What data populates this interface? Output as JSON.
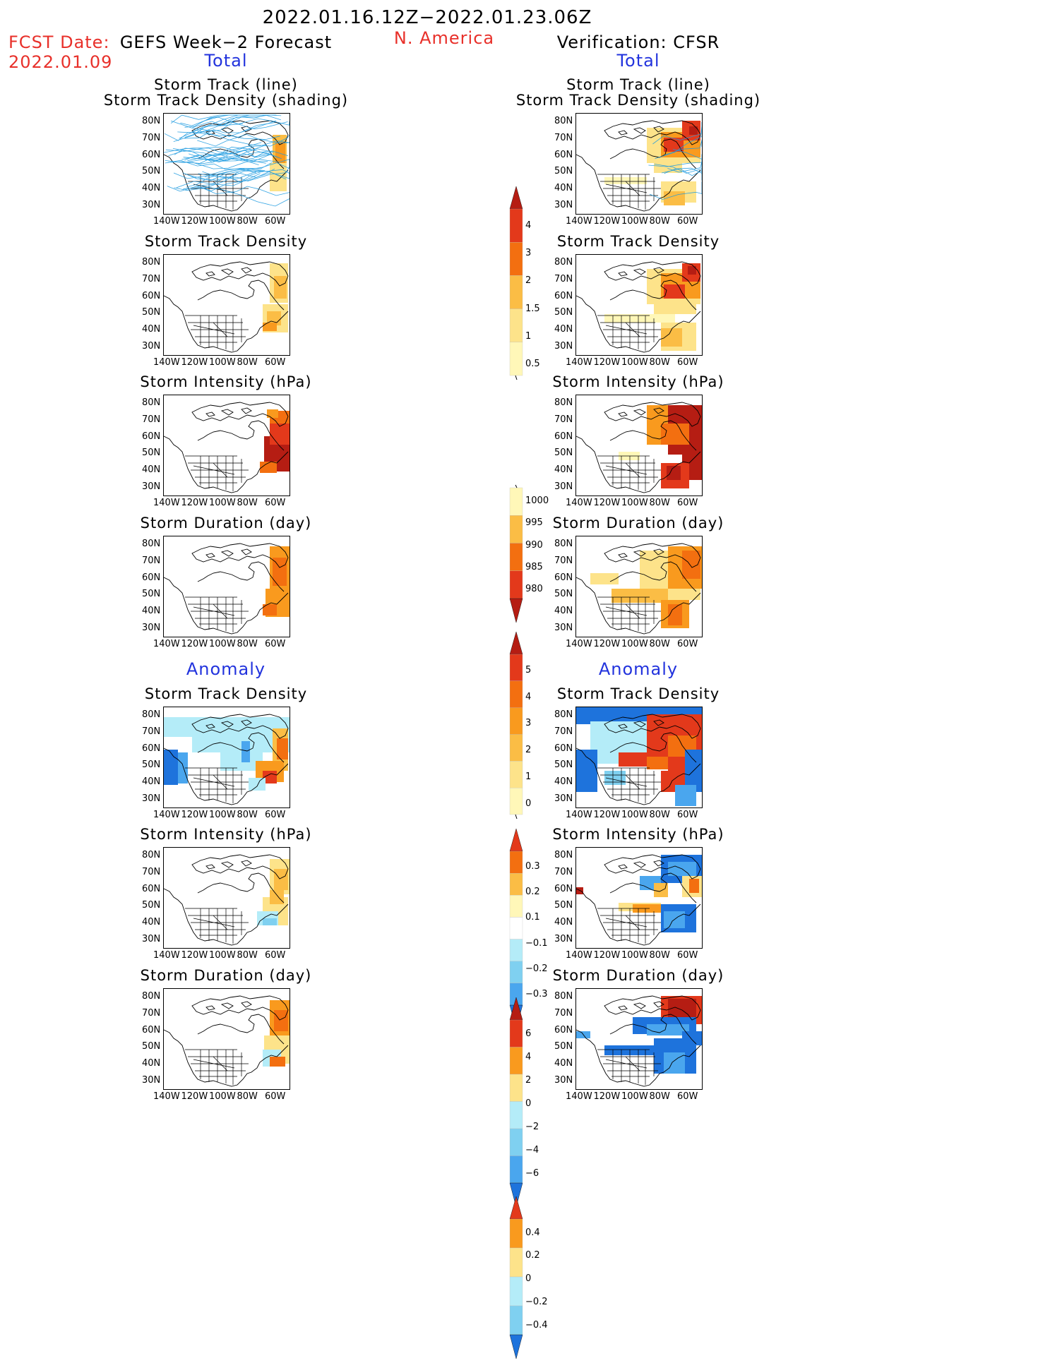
{
  "header": {
    "date_range": "2022.01.16.12Z−2022.01.23.06Z",
    "region": "N. America",
    "fcst_label": "FCST Date:",
    "fcst_date": "2022.01.09",
    "left_title": "GEFS Week−2 Forecast",
    "right_title": "Verification: CFSR"
  },
  "sections": {
    "total": "Total",
    "anomaly": "Anomaly"
  },
  "panel_titles": {
    "track_line": "Storm Track (line)",
    "track_shading": "Storm Track Density (shading)",
    "density": "Storm Track Density",
    "intensity": "Storm Intensity (hPa)",
    "duration": "Storm Duration (day)"
  },
  "axes": {
    "lat_labels": [
      "80N",
      "70N",
      "60N",
      "50N",
      "40N",
      "30N"
    ],
    "lon_labels": [
      "140W",
      "120W",
      "100W",
      "80W",
      "60W"
    ]
  },
  "colorbars": {
    "density_total": [
      "4",
      "3",
      "2",
      "1.5",
      "1",
      "0.5"
    ],
    "intensity_total": [
      "1000",
      "995",
      "990",
      "985",
      "980"
    ],
    "duration_total": [
      "5",
      "4",
      "3",
      "2",
      "1",
      "0"
    ],
    "density_anom": [
      "0.3",
      "0.2",
      "0.1",
      "−0.1",
      "−0.2",
      "−0.3"
    ],
    "intensity_anom": [
      "6",
      "4",
      "2",
      "0",
      "−2",
      "−4",
      "−6"
    ],
    "duration_anom": [
      "0.4",
      "0.2",
      "0",
      "−0.2",
      "−0.4"
    ]
  },
  "colors": {
    "warm": [
      "#fff7b8",
      "#fde38a",
      "#fbbd45",
      "#f99a1e",
      "#f36f10",
      "#e3391b",
      "#b51d13"
    ],
    "cool": [
      "#b4ecf8",
      "#7fd0f0",
      "#4aa6ee",
      "#1e73dc"
    ],
    "track_line": "#1e9be0",
    "title_red": "#e8302a",
    "title_blue": "#2233dd"
  }
}
